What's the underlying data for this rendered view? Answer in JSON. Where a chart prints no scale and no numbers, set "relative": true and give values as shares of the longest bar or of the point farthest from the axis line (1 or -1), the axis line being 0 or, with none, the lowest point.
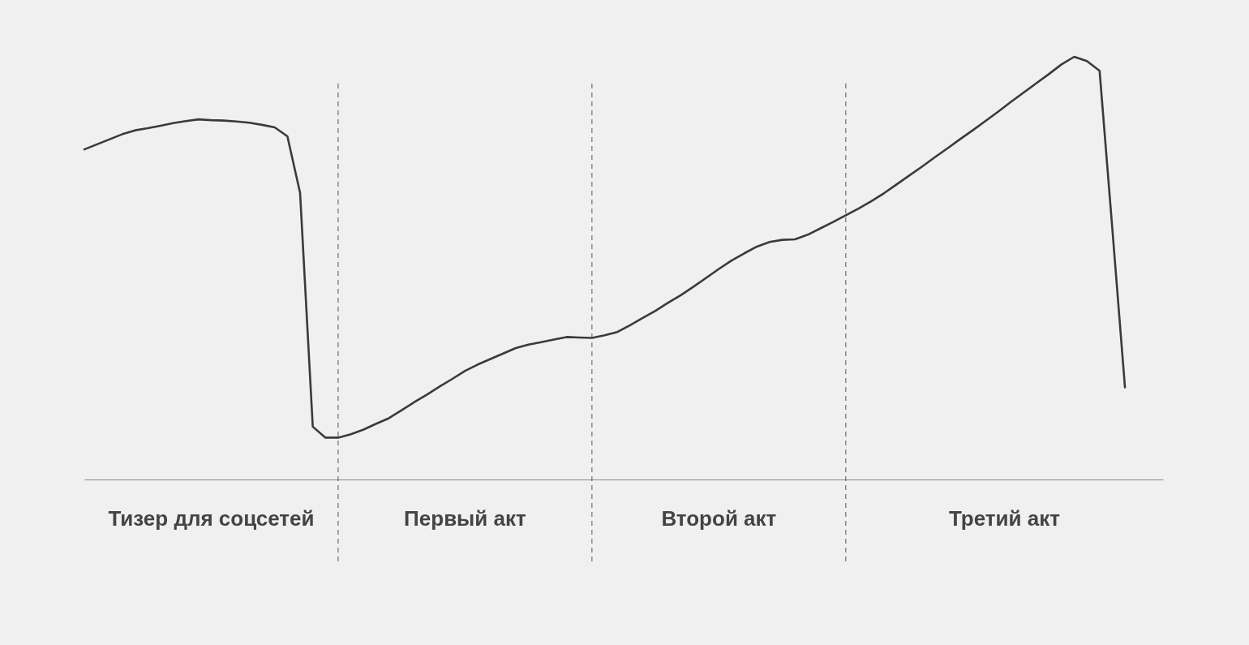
{
  "chart_data": {
    "type": "line",
    "relative": true,
    "annotations": [
      "Тизер для соцсетей",
      "Первый акт",
      "Второй акт",
      "Третий акт"
    ],
    "categories": [
      null,
      null,
      null,
      null,
      null,
      null,
      null,
      null,
      null,
      null,
      null,
      null,
      null,
      null,
      null,
      null,
      null,
      null,
      null,
      null,
      null,
      null,
      null,
      null,
      null,
      null,
      null,
      null,
      null,
      null,
      null,
      null,
      null,
      null,
      null,
      null,
      null,
      null,
      null,
      null,
      null,
      null,
      null,
      null,
      null,
      null,
      null,
      null,
      null,
      null,
      null,
      null,
      null,
      null,
      null,
      null,
      null,
      null,
      null,
      null,
      null,
      null,
      null,
      null,
      null,
      null,
      null,
      null,
      null,
      null,
      null,
      null,
      null,
      null,
      null,
      null,
      null,
      null,
      null,
      null,
      null,
      null,
      null,
      null,
      null,
      null
    ],
    "series": [
      {
        "color": "#3a3a3a",
        "values": [
          0.781,
          0.793,
          0.805,
          0.817,
          0.826,
          0.831,
          0.837,
          0.843,
          0.848,
          0.852,
          0.85,
          0.849,
          0.847,
          0.844,
          0.839,
          0.833,
          0.812,
          0.678,
          0.125,
          0.099,
          0.099,
          0.107,
          0.118,
          0.132,
          0.145,
          0.164,
          0.183,
          0.201,
          0.22,
          0.238,
          0.257,
          0.272,
          0.285,
          0.298,
          0.311,
          0.319,
          0.325,
          0.331,
          0.337,
          0.336,
          0.335,
          0.341,
          0.349,
          0.365,
          0.382,
          0.399,
          0.418,
          0.436,
          0.456,
          0.477,
          0.498,
          0.518,
          0.535,
          0.551,
          0.562,
          0.567,
          0.568,
          0.579,
          0.594,
          0.609,
          0.625,
          0.641,
          0.658,
          0.677,
          0.698,
          0.719,
          0.74,
          0.762,
          0.783,
          0.805,
          0.826,
          0.848,
          0.87,
          0.893,
          0.915,
          0.937,
          0.959,
          0.982,
          1.0,
          0.99,
          0.967,
          0.595,
          0.218,
          null,
          null,
          null
        ]
      }
    ],
    "grid": "x",
    "line_style": "solid",
    "marker": "none"
  }
}
